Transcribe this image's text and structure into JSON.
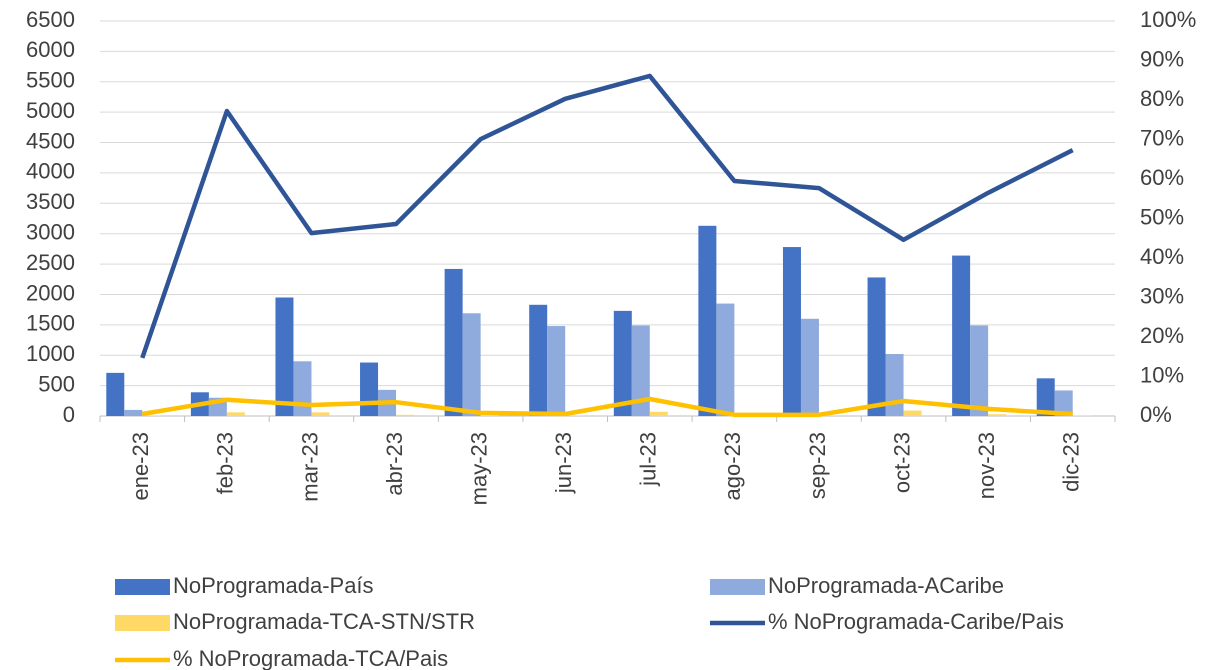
{
  "chart_data": {
    "type": "bar",
    "categories": [
      "ene-23",
      "feb-23",
      "mar-23",
      "abr-23",
      "may-23",
      "jun-23",
      "jul-23",
      "ago-23",
      "sep-23",
      "oct-23",
      "nov-23",
      "dic-23"
    ],
    "series": [
      {
        "name": "NoProgramada-País",
        "color": "#4472c4",
        "values": [
          710,
          390,
          1950,
          880,
          2420,
          1830,
          1730,
          3130,
          2780,
          2280,
          2640,
          620
        ]
      },
      {
        "name": "NoProgramada-ACaribe",
        "color": "#8faadc",
        "values": [
          100,
          300,
          900,
          430,
          1690,
          1480,
          1490,
          1850,
          1600,
          1020,
          1490,
          420
        ]
      },
      {
        "name": "NoProgramada-TCA-STN/STR",
        "color": "#ffd966",
        "values": [
          10,
          60,
          60,
          20,
          10,
          10,
          70,
          10,
          10,
          90,
          30,
          5
        ]
      },
      {
        "name": "% NoProgramada-Caribe/Pais",
        "color": "#2f5597",
        "type": "line",
        "axis": "y2",
        "values": [
          14.7,
          77.2,
          46.3,
          48.6,
          70.1,
          80.3,
          86.1,
          59.5,
          57.7,
          44.6,
          56.5,
          67.3
        ]
      },
      {
        "name": "% NoProgramada-TCA/Pais",
        "color": "#ffc000",
        "type": "line",
        "axis": "y2",
        "values": [
          0.5,
          4.1,
          2.8,
          3.5,
          0.8,
          0.5,
          4.3,
          0.3,
          0.3,
          3.8,
          1.8,
          0.5
        ]
      }
    ],
    "ylim": [
      0,
      6500
    ],
    "yticks": [
      0,
      500,
      1000,
      1500,
      2000,
      2500,
      3000,
      3500,
      4000,
      4500,
      5000,
      5500,
      6000,
      6500
    ],
    "y2lim": [
      0,
      100
    ],
    "y2ticks": [
      {
        "value": 0,
        "label": "0%"
      },
      {
        "value": 10,
        "label": "10%"
      },
      {
        "value": 20,
        "label": "20%"
      },
      {
        "value": 30,
        "label": "30%"
      },
      {
        "value": 40,
        "label": "40%"
      },
      {
        "value": 50,
        "label": "50%"
      },
      {
        "value": 60,
        "label": "60%"
      },
      {
        "value": 70,
        "label": "70%"
      },
      {
        "value": 80,
        "label": "80%"
      },
      {
        "value": 90,
        "label": "90%"
      },
      {
        "value": 100,
        "label": "100%"
      }
    ],
    "grid": true,
    "legend": "bottom"
  }
}
